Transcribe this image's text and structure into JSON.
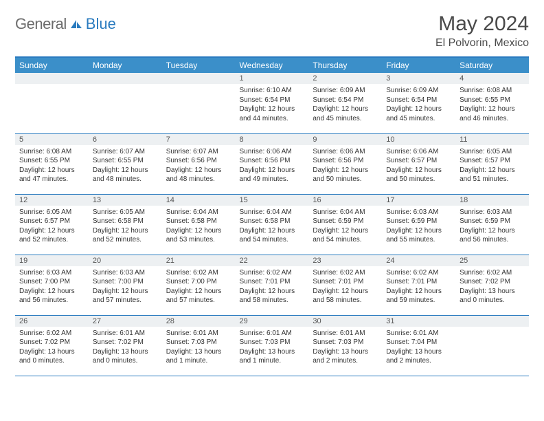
{
  "logo": {
    "text1": "General",
    "text2": "Blue"
  },
  "title": "May 2024",
  "location": "El Polvorin, Mexico",
  "day_headers": [
    "Sunday",
    "Monday",
    "Tuesday",
    "Wednesday",
    "Thursday",
    "Friday",
    "Saturday"
  ],
  "header_bg": "#3b8fc9",
  "header_text_color": "#ffffff",
  "border_color": "#2a7bbf",
  "daynum_bg": "#edf0f2",
  "weeks": [
    [
      {
        "num": "",
        "lines": []
      },
      {
        "num": "",
        "lines": []
      },
      {
        "num": "",
        "lines": []
      },
      {
        "num": "1",
        "lines": [
          "Sunrise: 6:10 AM",
          "Sunset: 6:54 PM",
          "Daylight: 12 hours",
          "and 44 minutes."
        ]
      },
      {
        "num": "2",
        "lines": [
          "Sunrise: 6:09 AM",
          "Sunset: 6:54 PM",
          "Daylight: 12 hours",
          "and 45 minutes."
        ]
      },
      {
        "num": "3",
        "lines": [
          "Sunrise: 6:09 AM",
          "Sunset: 6:54 PM",
          "Daylight: 12 hours",
          "and 45 minutes."
        ]
      },
      {
        "num": "4",
        "lines": [
          "Sunrise: 6:08 AM",
          "Sunset: 6:55 PM",
          "Daylight: 12 hours",
          "and 46 minutes."
        ]
      }
    ],
    [
      {
        "num": "5",
        "lines": [
          "Sunrise: 6:08 AM",
          "Sunset: 6:55 PM",
          "Daylight: 12 hours",
          "and 47 minutes."
        ]
      },
      {
        "num": "6",
        "lines": [
          "Sunrise: 6:07 AM",
          "Sunset: 6:55 PM",
          "Daylight: 12 hours",
          "and 48 minutes."
        ]
      },
      {
        "num": "7",
        "lines": [
          "Sunrise: 6:07 AM",
          "Sunset: 6:56 PM",
          "Daylight: 12 hours",
          "and 48 minutes."
        ]
      },
      {
        "num": "8",
        "lines": [
          "Sunrise: 6:06 AM",
          "Sunset: 6:56 PM",
          "Daylight: 12 hours",
          "and 49 minutes."
        ]
      },
      {
        "num": "9",
        "lines": [
          "Sunrise: 6:06 AM",
          "Sunset: 6:56 PM",
          "Daylight: 12 hours",
          "and 50 minutes."
        ]
      },
      {
        "num": "10",
        "lines": [
          "Sunrise: 6:06 AM",
          "Sunset: 6:57 PM",
          "Daylight: 12 hours",
          "and 50 minutes."
        ]
      },
      {
        "num": "11",
        "lines": [
          "Sunrise: 6:05 AM",
          "Sunset: 6:57 PM",
          "Daylight: 12 hours",
          "and 51 minutes."
        ]
      }
    ],
    [
      {
        "num": "12",
        "lines": [
          "Sunrise: 6:05 AM",
          "Sunset: 6:57 PM",
          "Daylight: 12 hours",
          "and 52 minutes."
        ]
      },
      {
        "num": "13",
        "lines": [
          "Sunrise: 6:05 AM",
          "Sunset: 6:58 PM",
          "Daylight: 12 hours",
          "and 52 minutes."
        ]
      },
      {
        "num": "14",
        "lines": [
          "Sunrise: 6:04 AM",
          "Sunset: 6:58 PM",
          "Daylight: 12 hours",
          "and 53 minutes."
        ]
      },
      {
        "num": "15",
        "lines": [
          "Sunrise: 6:04 AM",
          "Sunset: 6:58 PM",
          "Daylight: 12 hours",
          "and 54 minutes."
        ]
      },
      {
        "num": "16",
        "lines": [
          "Sunrise: 6:04 AM",
          "Sunset: 6:59 PM",
          "Daylight: 12 hours",
          "and 54 minutes."
        ]
      },
      {
        "num": "17",
        "lines": [
          "Sunrise: 6:03 AM",
          "Sunset: 6:59 PM",
          "Daylight: 12 hours",
          "and 55 minutes."
        ]
      },
      {
        "num": "18",
        "lines": [
          "Sunrise: 6:03 AM",
          "Sunset: 6:59 PM",
          "Daylight: 12 hours",
          "and 56 minutes."
        ]
      }
    ],
    [
      {
        "num": "19",
        "lines": [
          "Sunrise: 6:03 AM",
          "Sunset: 7:00 PM",
          "Daylight: 12 hours",
          "and 56 minutes."
        ]
      },
      {
        "num": "20",
        "lines": [
          "Sunrise: 6:03 AM",
          "Sunset: 7:00 PM",
          "Daylight: 12 hours",
          "and 57 minutes."
        ]
      },
      {
        "num": "21",
        "lines": [
          "Sunrise: 6:02 AM",
          "Sunset: 7:00 PM",
          "Daylight: 12 hours",
          "and 57 minutes."
        ]
      },
      {
        "num": "22",
        "lines": [
          "Sunrise: 6:02 AM",
          "Sunset: 7:01 PM",
          "Daylight: 12 hours",
          "and 58 minutes."
        ]
      },
      {
        "num": "23",
        "lines": [
          "Sunrise: 6:02 AM",
          "Sunset: 7:01 PM",
          "Daylight: 12 hours",
          "and 58 minutes."
        ]
      },
      {
        "num": "24",
        "lines": [
          "Sunrise: 6:02 AM",
          "Sunset: 7:01 PM",
          "Daylight: 12 hours",
          "and 59 minutes."
        ]
      },
      {
        "num": "25",
        "lines": [
          "Sunrise: 6:02 AM",
          "Sunset: 7:02 PM",
          "Daylight: 13 hours",
          "and 0 minutes."
        ]
      }
    ],
    [
      {
        "num": "26",
        "lines": [
          "Sunrise: 6:02 AM",
          "Sunset: 7:02 PM",
          "Daylight: 13 hours",
          "and 0 minutes."
        ]
      },
      {
        "num": "27",
        "lines": [
          "Sunrise: 6:01 AM",
          "Sunset: 7:02 PM",
          "Daylight: 13 hours",
          "and 0 minutes."
        ]
      },
      {
        "num": "28",
        "lines": [
          "Sunrise: 6:01 AM",
          "Sunset: 7:03 PM",
          "Daylight: 13 hours",
          "and 1 minute."
        ]
      },
      {
        "num": "29",
        "lines": [
          "Sunrise: 6:01 AM",
          "Sunset: 7:03 PM",
          "Daylight: 13 hours",
          "and 1 minute."
        ]
      },
      {
        "num": "30",
        "lines": [
          "Sunrise: 6:01 AM",
          "Sunset: 7:03 PM",
          "Daylight: 13 hours",
          "and 2 minutes."
        ]
      },
      {
        "num": "31",
        "lines": [
          "Sunrise: 6:01 AM",
          "Sunset: 7:04 PM",
          "Daylight: 13 hours",
          "and 2 minutes."
        ]
      },
      {
        "num": "",
        "lines": []
      }
    ]
  ]
}
